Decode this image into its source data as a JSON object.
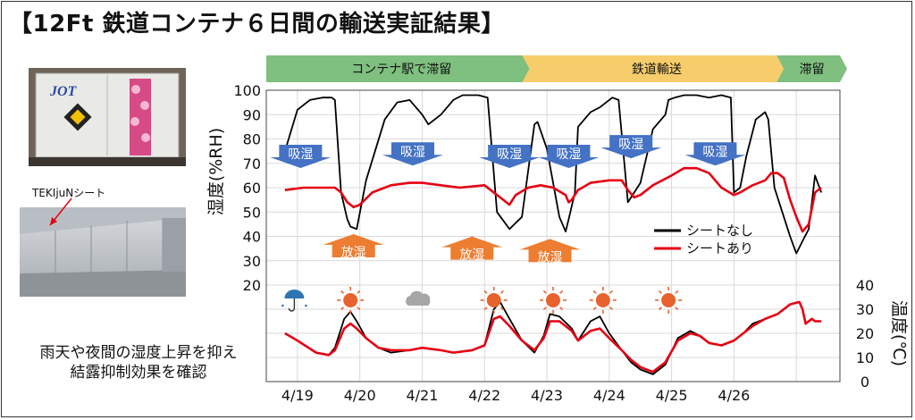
{
  "title": "【12Ft 鉄道コンテナ６日間の輸送実証結果】",
  "photo": {
    "container_logo": "JOT",
    "sheet_label": "TEKIjuNシート"
  },
  "caption": [
    "雨天や夜間の湿度上昇を抑え",
    "結露抑制効果を確認"
  ],
  "colors": {
    "no_sheet": "#000000",
    "with_sheet": "#e60012",
    "phase_green": "#7fbf7f",
    "phase_yellow": "#f7cd6b",
    "absorb_arrow": "#4472c4",
    "release_arrow": "#ed7d31",
    "sun": "#e8622e",
    "rain": "#2e75b6",
    "cloud": "#a6a6a6"
  },
  "chart_data": {
    "type": "line",
    "phases": [
      {
        "label": "コンテナ駅で滞留",
        "start": 0,
        "end": 4.22
      },
      {
        "label": "鉄道輸送",
        "start": 4.22,
        "end": 8.3
      },
      {
        "label": "滞留",
        "start": 8.3,
        "end": 9.2
      }
    ],
    "x_tick_labels": [
      "4/19",
      "4/20",
      "4/21",
      "4/22",
      "4/23",
      "4/24",
      "4/25",
      "4/26"
    ],
    "x_tick_positions": [
      0.5,
      1.5,
      2.5,
      3.5,
      4.5,
      5.5,
      6.5,
      7.5
    ],
    "xlim": [
      0,
      9.2
    ],
    "humidity": {
      "ylabel": "湿度(%RH)",
      "ylim": [
        20,
        100
      ],
      "ticks": [
        20,
        30,
        40,
        50,
        60,
        70,
        80,
        90,
        100
      ],
      "series": [
        {
          "name": "シートなし",
          "color": "#000000",
          "x": [
            0.3,
            0.5,
            0.7,
            0.9,
            1.05,
            1.1,
            1.2,
            1.3,
            1.35,
            1.45,
            1.6,
            1.9,
            2.1,
            2.3,
            2.5,
            2.6,
            2.8,
            3.0,
            3.15,
            3.4,
            3.55,
            3.7,
            3.9,
            4.1,
            4.3,
            4.35,
            4.5,
            4.7,
            4.8,
            4.85,
            4.95,
            5.0,
            5.2,
            5.35,
            5.5,
            5.55,
            5.65,
            5.8,
            6.0,
            6.2,
            6.4,
            6.45,
            6.55,
            6.7,
            6.9,
            7.1,
            7.3,
            7.45,
            7.5,
            7.6,
            7.7,
            7.85,
            8.0,
            8.05,
            8.15,
            8.3,
            8.4,
            8.5,
            8.6,
            8.7,
            8.8,
            8.9
          ],
          "y": [
            75,
            92,
            96,
            97,
            97,
            96,
            58,
            47,
            44,
            43,
            63,
            88,
            95,
            96,
            90,
            86,
            90,
            96,
            98,
            98,
            97,
            50,
            43,
            48,
            86,
            87,
            76,
            48,
            42,
            47,
            58,
            85,
            91,
            93,
            96,
            97,
            96,
            54,
            62,
            84,
            90,
            96,
            97,
            98,
            98,
            97,
            98,
            97,
            58,
            60,
            73,
            88,
            91,
            88,
            60,
            48,
            40,
            33,
            38,
            43,
            65,
            58
          ]
        },
        {
          "name": "シートあり",
          "color": "#e60012",
          "x": [
            0.3,
            0.6,
            0.9,
            1.1,
            1.2,
            1.3,
            1.4,
            1.5,
            1.7,
            2.0,
            2.3,
            2.5,
            2.8,
            3.1,
            3.5,
            3.7,
            3.8,
            3.9,
            4.0,
            4.2,
            4.4,
            4.6,
            4.8,
            4.85,
            4.9,
            5.0,
            5.2,
            5.5,
            5.7,
            5.8,
            5.9,
            6.0,
            6.2,
            6.5,
            6.7,
            6.9,
            7.1,
            7.3,
            7.5,
            7.6,
            7.8,
            8.0,
            8.1,
            8.2,
            8.3,
            8.4,
            8.5,
            8.6,
            8.7,
            8.8,
            8.9
          ],
          "y": [
            59,
            60,
            60,
            60,
            58,
            54,
            52,
            53,
            58,
            61,
            62,
            62,
            61,
            60,
            61,
            57,
            55,
            53,
            57,
            60,
            61,
            60,
            57,
            54,
            55,
            59,
            62,
            63,
            63,
            59,
            56,
            57,
            61,
            65,
            68,
            68,
            66,
            60,
            57,
            58,
            61,
            63,
            66,
            66,
            64,
            55,
            48,
            42,
            45,
            58,
            60
          ]
        }
      ]
    },
    "temperature": {
      "ylabel": "温度(℃)",
      "ylim": [
        0,
        40
      ],
      "ticks": [
        0,
        10,
        20,
        30,
        40
      ],
      "series": [
        {
          "name": "シートなし",
          "color": "#000000",
          "x": [
            0.3,
            0.5,
            0.8,
            1.0,
            1.1,
            1.25,
            1.35,
            1.45,
            1.6,
            1.8,
            2.0,
            2.3,
            2.5,
            2.8,
            3.0,
            3.3,
            3.5,
            3.65,
            3.75,
            3.9,
            4.1,
            4.3,
            4.45,
            4.55,
            4.7,
            4.9,
            5.0,
            5.2,
            5.35,
            5.5,
            5.7,
            5.85,
            6.0,
            6.2,
            6.4,
            6.6,
            6.8,
            6.95,
            7.1,
            7.3,
            7.5,
            7.65,
            7.8,
            8.0,
            8.2,
            8.4,
            8.55,
            8.6,
            8.65,
            8.75,
            8.8,
            8.9
          ],
          "y": [
            20,
            17,
            12,
            11,
            14,
            26,
            29,
            25,
            18,
            14,
            12,
            13,
            14,
            13,
            12,
            13,
            15,
            30,
            33,
            26,
            17,
            12,
            19,
            28,
            27,
            22,
            17,
            25,
            27,
            20,
            13,
            8,
            5,
            3,
            7,
            18,
            21,
            19,
            16,
            15,
            17,
            20,
            24,
            26,
            28,
            32,
            33,
            30,
            24,
            26,
            25,
            25
          ]
        },
        {
          "name": "シートあり",
          "color": "#e60012",
          "x": [
            0.3,
            0.5,
            0.8,
            1.0,
            1.1,
            1.25,
            1.35,
            1.45,
            1.6,
            1.8,
            2.0,
            2.3,
            2.5,
            2.8,
            3.0,
            3.3,
            3.5,
            3.65,
            3.75,
            3.9,
            4.1,
            4.3,
            4.45,
            4.55,
            4.7,
            4.9,
            5.0,
            5.2,
            5.35,
            5.5,
            5.7,
            5.85,
            6.0,
            6.2,
            6.4,
            6.6,
            6.8,
            6.95,
            7.1,
            7.3,
            7.5,
            7.65,
            7.8,
            8.0,
            8.2,
            8.4,
            8.55,
            8.6,
            8.65,
            8.75,
            8.8,
            8.9
          ],
          "y": [
            20,
            17,
            12,
            11,
            13,
            22,
            24,
            22,
            18,
            14,
            13,
            13,
            14,
            13,
            12,
            13,
            15,
            26,
            27,
            23,
            17,
            13,
            18,
            25,
            25,
            21,
            17,
            21,
            22,
            18,
            13,
            9,
            6,
            4,
            8,
            17,
            20,
            19,
            16,
            15,
            17,
            20,
            23,
            26,
            28,
            32,
            33,
            30,
            24,
            26,
            25,
            25
          ]
        }
      ]
    },
    "absorb_label": "吸湿",
    "release_label": "放湿",
    "absorb_arrows": [
      {
        "x": 0.55,
        "y": 71
      },
      {
        "x": 2.35,
        "y": 72
      },
      {
        "x": 3.9,
        "y": 71
      },
      {
        "x": 4.85,
        "y": 71
      },
      {
        "x": 5.85,
        "y": 75
      },
      {
        "x": 7.2,
        "y": 72
      }
    ],
    "release_arrows": [
      {
        "x": 1.4,
        "y": 38
      },
      {
        "x": 3.3,
        "y": 37
      },
      {
        "x": 4.55,
        "y": 36
      }
    ],
    "weather_icons": [
      {
        "type": "rain",
        "x": 0.45
      },
      {
        "type": "sun",
        "x": 1.35
      },
      {
        "type": "cloud",
        "x": 2.45
      },
      {
        "type": "sun",
        "x": 3.65
      },
      {
        "type": "sun",
        "x": 4.6
      },
      {
        "type": "sun",
        "x": 5.4
      },
      {
        "type": "sun",
        "x": 6.45
      }
    ],
    "legend": {
      "position": "lower-right of humidity panel"
    }
  }
}
